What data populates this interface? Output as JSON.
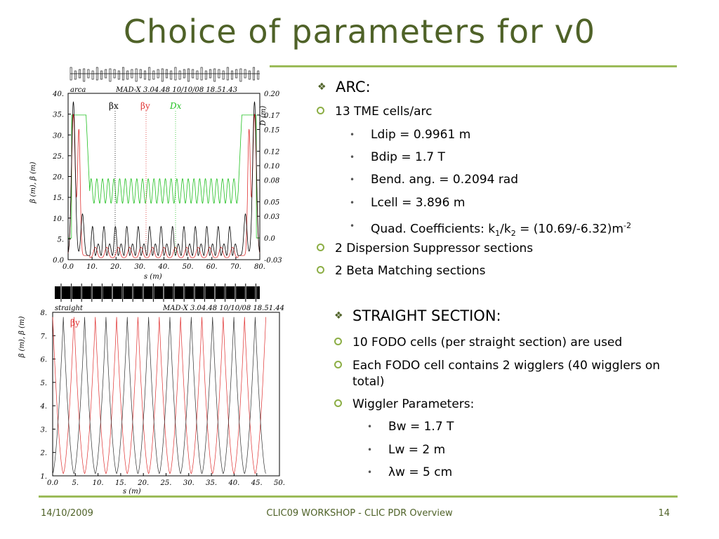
{
  "slide": {
    "title": "Choice of parameters for v0",
    "footer": {
      "date": "14/10/2009",
      "center": "CLIC09 WORKSHOP - CLIC PDR Overview",
      "page": "14"
    },
    "arc": {
      "heading": "ARC:",
      "item1": "13 TME cells/arc",
      "ldip": "Ldip =  0.9961 m",
      "bdip": "Bdip = 1.7 T",
      "bend": "Bend. ang. = 0.2094 rad",
      "lcell": "Lcell = 3.896 m",
      "quad": {
        "pre": "Quad. Coefficients: k",
        "s1": "1",
        "slash": "/k",
        "s2": "2",
        "mid": " = (10.69/-6.32)m",
        "exp": "-2"
      },
      "item2": "2 Dispersion Suppressor sections",
      "item3": "2 Beta Matching sections"
    },
    "straight": {
      "heading": "STRAIGHT SECTION:",
      "item1": "10 FODO cells (per straight section) are used",
      "item2a": "Each FODO cell contains 2 wigglers (40 wigglers on",
      "item2b": "total)",
      "item3": "Wiggler Parameters:",
      "bw": "Bw = 1.7 T",
      "lw": "Lw = 2 m",
      "lambda": "λw = 5 cm"
    }
  },
  "chart_data": [
    {
      "type": "line",
      "corner_label": "arca",
      "header": "MAD-X 3.04.48   10/10/08 18.51.43",
      "xlabel": "s (m)",
      "ylabel": "β (m),  β (m)",
      "y2label": "D (m)",
      "xlim": [
        0,
        80
      ],
      "ylim": [
        0,
        40
      ],
      "y2lim": [
        -0.03,
        0.2
      ],
      "xticks": [
        "0.0",
        "10.",
        "20.",
        "30.",
        "40.",
        "50.",
        "60.",
        "70.",
        "80."
      ],
      "yticks": [
        "0.0",
        "5.",
        "10.",
        "15.",
        "20.",
        "25.",
        "30.",
        "35.",
        "40."
      ],
      "y2ticks": [
        "-0.03",
        "0.0",
        "0.03",
        "0.05",
        "0.08",
        "0.10",
        "0.12",
        "0.15",
        "0.17",
        "0.20"
      ],
      "legend": [
        "βx",
        "βy",
        "Dx"
      ],
      "colors": {
        "betax": "#000000",
        "betay": "#e03030",
        "dx": "#20c020"
      },
      "series": [
        {
          "name": "βx",
          "description": "edge peaks ~38 m at s≈2 and s≈77, periodic 13 cells peak ~8 m"
        },
        {
          "name": "βy",
          "description": "edge peaks ~35 m, periodic cells ~3 m"
        },
        {
          "name": "Dx",
          "description": "plateau ~0.17 m at edges, oscillating 0.05–0.08 m in the 13 cells"
        }
      ]
    },
    {
      "type": "line",
      "corner_label": "straight",
      "header": "MAD-X 3.04.48   10/10/08 18.51.44",
      "xlabel": "s (m)",
      "ylabel": "β (m),  β (m)",
      "xlim": [
        0,
        50
      ],
      "ylim": [
        1,
        8
      ],
      "xticks": [
        "0.0",
        "5.",
        "10.",
        "15.",
        "20.",
        "25.",
        "30.",
        "35.",
        "40.",
        "45.",
        "50."
      ],
      "yticks": [
        "1.",
        "2.",
        "3.",
        "4.",
        "5.",
        "6.",
        "7.",
        "8."
      ],
      "legend": [
        "βy"
      ],
      "colors": {
        "betax": "#303030",
        "betay": "#e03030"
      },
      "series": [
        {
          "name": "βx",
          "min": 1.1,
          "max": 7.8,
          "period": 4.7
        },
        {
          "name": "βy",
          "min": 1.1,
          "max": 7.8,
          "period": 4.7,
          "phase_shift": 0.5
        }
      ]
    }
  ]
}
